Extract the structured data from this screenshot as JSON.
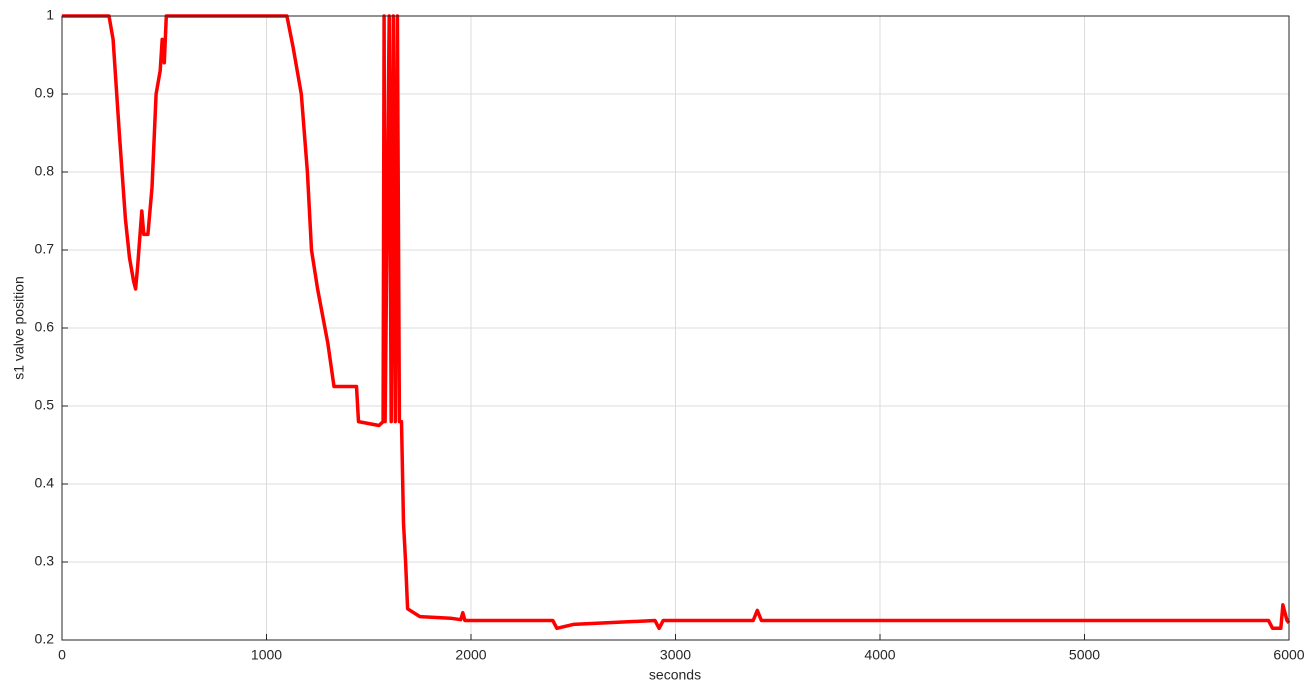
{
  "chart_data": {
    "type": "line",
    "xlabel": "seconds",
    "ylabel": "s1 valve position",
    "x": [
      0,
      230,
      250,
      280,
      310,
      330,
      350,
      360,
      370,
      390,
      400,
      420,
      440,
      460,
      480,
      490,
      500,
      510,
      1100,
      1130,
      1170,
      1200,
      1220,
      1250,
      1300,
      1330,
      1440,
      1450,
      1550,
      1570,
      1575,
      1580,
      1600,
      1610,
      1620,
      1630,
      1640,
      1650,
      1660,
      1670,
      1680,
      1690,
      1750,
      1900,
      1950,
      1960,
      1970,
      2400,
      2420,
      2500,
      2900,
      2920,
      2940,
      3380,
      3400,
      3420,
      5900,
      5920,
      5960,
      5970,
      5990,
      6000
    ],
    "series": [
      {
        "name": "s1 valve position",
        "color": "#ff0000",
        "values": [
          1,
          1,
          0.97,
          0.85,
          0.74,
          0.69,
          0.66,
          0.65,
          0.68,
          0.75,
          0.72,
          0.72,
          0.78,
          0.9,
          0.93,
          0.97,
          0.94,
          1,
          1,
          0.96,
          0.9,
          0.8,
          0.7,
          0.65,
          0.58,
          0.525,
          0.525,
          0.48,
          0.475,
          0.48,
          1,
          0.48,
          1,
          0.48,
          1,
          0.48,
          1,
          0.48,
          0.48,
          0.35,
          0.3,
          0.24,
          0.23,
          0.228,
          0.226,
          0.235,
          0.225,
          0.225,
          0.215,
          0.22,
          0.225,
          0.215,
          0.225,
          0.225,
          0.238,
          0.225,
          0.225,
          0.215,
          0.215,
          0.245,
          0.225,
          0.222
        ]
      }
    ],
    "xlim": [
      0,
      6000
    ],
    "xticks": [
      0,
      1000,
      2000,
      3000,
      4000,
      5000,
      6000
    ],
    "ylim": [
      0.2,
      1
    ],
    "yticks": [
      0.2,
      0.3,
      0.4,
      0.5,
      0.6,
      0.7,
      0.8,
      0.9,
      1
    ],
    "grid": true
  }
}
